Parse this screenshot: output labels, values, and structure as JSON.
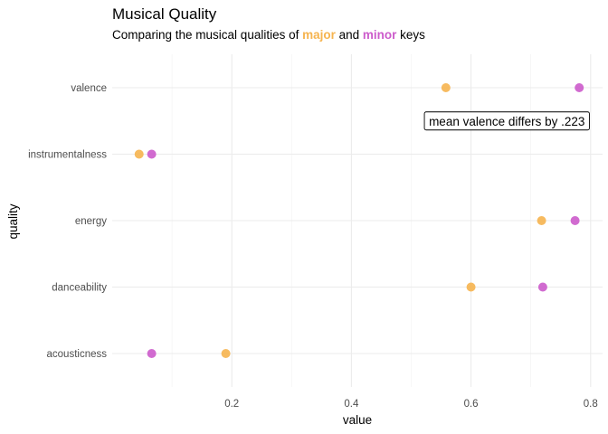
{
  "chart_data": {
    "type": "scatter",
    "title": "Musical Quality",
    "subtitle": {
      "prefix": "Comparing the musical qualities of ",
      "major_word": "major",
      "middle": " and ",
      "minor_word": "minor",
      "suffix": " keys"
    },
    "xlabel": "value",
    "ylabel": "quality",
    "xlim": [
      0.0,
      0.82
    ],
    "x_ticks": [
      0.2,
      0.4,
      0.6,
      0.8
    ],
    "x_tick_labels": [
      "0.2",
      "0.4",
      "0.6",
      "0.8"
    ],
    "categories": [
      "valence",
      "instrumentalness",
      "energy",
      "danceability",
      "acousticness"
    ],
    "grid": true,
    "series": [
      {
        "key": "major",
        "color": "#F6B44F",
        "values": [
          0.558,
          0.045,
          0.718,
          0.6,
          0.19
        ]
      },
      {
        "key": "minor",
        "color": "#CC5BCB",
        "values": [
          0.781,
          0.066,
          0.774,
          0.72,
          0.066
        ]
      }
    ],
    "annotation": {
      "text": "mean valence differs by .223",
      "x": 0.66,
      "category_between": [
        "valence",
        "instrumentalness"
      ],
      "position": 0.5
    }
  }
}
